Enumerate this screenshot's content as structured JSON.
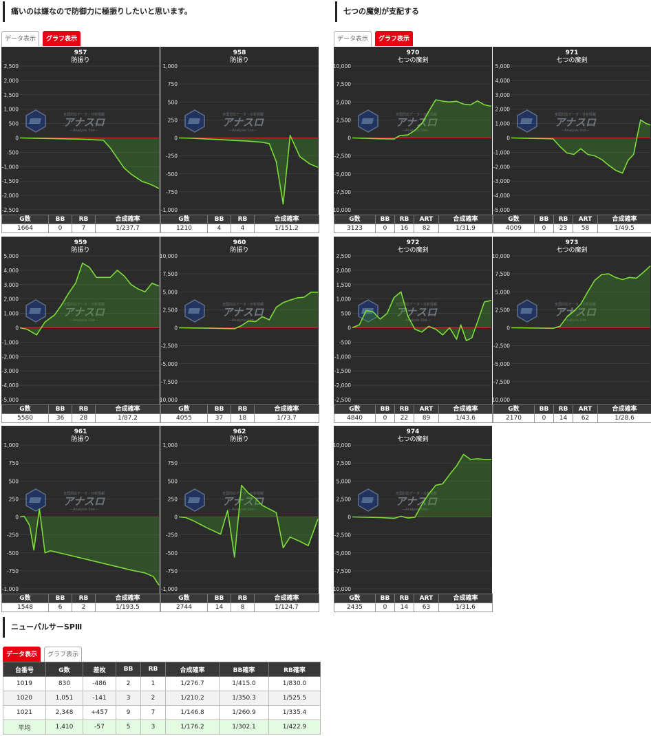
{
  "sections": {
    "left": {
      "title": "痛いのは嫌なので防御力に極振りしたいと思います。",
      "tab_data": "データ表示",
      "tab_graph": "グラフ表示"
    },
    "right": {
      "title": "七つの魔剣が支配する",
      "tab_data": "データ表示",
      "tab_graph": "グラフ表示"
    },
    "bottom": {
      "title": "ニューパルサーSPⅢ",
      "tab_data": "データ表示",
      "tab_graph": "グラフ表示"
    }
  },
  "watermark": {
    "text": "アナスロ",
    "sub": "—Analysis Slot—",
    "top": "全国対応データ・分析情報"
  },
  "headers": {
    "g": "G数",
    "bb": "BB",
    "rb": "RB",
    "art": "ART",
    "rate": "合成確率"
  },
  "colors": {
    "plot_bg": "#2b2b2b",
    "line": "#7ddc3a",
    "zero": "#c62828",
    "fill": "rgba(60,150,40,0.35)"
  },
  "machines": [
    {
      "no": "957",
      "name": "防振り",
      "g": "1664",
      "bb": "0",
      "rb": "7",
      "rate": "1/237.7",
      "chart_data": {
        "type": "area",
        "ylim": [
          -2500,
          2500
        ],
        "yticks": [
          2500,
          2000,
          1500,
          1000,
          500,
          0,
          -500,
          -1000,
          -1500,
          -2000,
          -2500
        ],
        "points": [
          [
            0,
            0
          ],
          [
            0.1,
            -10
          ],
          [
            0.2,
            -20
          ],
          [
            0.3,
            -30
          ],
          [
            0.4,
            -40
          ],
          [
            0.5,
            -55
          ],
          [
            0.55,
            -70
          ],
          [
            0.6,
            -80
          ],
          [
            0.65,
            -350
          ],
          [
            0.7,
            -700
          ],
          [
            0.75,
            -1050
          ],
          [
            0.8,
            -1260
          ],
          [
            0.85,
            -1420
          ],
          [
            0.88,
            -1520
          ],
          [
            0.92,
            -1580
          ],
          [
            0.96,
            -1660
          ],
          [
            1,
            -1760
          ]
        ]
      }
    },
    {
      "no": "958",
      "name": "防振り",
      "g": "1210",
      "bb": "4",
      "rb": "4",
      "rate": "1/151.2",
      "chart_data": {
        "type": "area",
        "ylim": [
          -1000,
          1000
        ],
        "yticks": [
          1000,
          750,
          500,
          250,
          0,
          -250,
          -500,
          -750,
          -1000
        ],
        "points": [
          [
            0,
            0
          ],
          [
            0.1,
            -5
          ],
          [
            0.2,
            -15
          ],
          [
            0.3,
            -25
          ],
          [
            0.4,
            -35
          ],
          [
            0.5,
            -45
          ],
          [
            0.6,
            -60
          ],
          [
            0.65,
            -80
          ],
          [
            0.7,
            -330
          ],
          [
            0.75,
            -920
          ],
          [
            0.8,
            35
          ],
          [
            0.87,
            -260
          ],
          [
            0.94,
            -360
          ],
          [
            1,
            -410
          ]
        ]
      }
    },
    {
      "no": "970",
      "name": "七つの魔剣",
      "g": "3123",
      "bb": "0",
      "rb": "16",
      "art": "82",
      "rate": "1/31.9",
      "chart_data": {
        "type": "area",
        "ylim": [
          -10000,
          10000
        ],
        "yticks": [
          10000,
          7500,
          5000,
          2500,
          0,
          -2500,
          -5000,
          -7500,
          -10000
        ],
        "points": [
          [
            0,
            0
          ],
          [
            0.1,
            -60
          ],
          [
            0.2,
            -120
          ],
          [
            0.3,
            -150
          ],
          [
            0.34,
            320
          ],
          [
            0.4,
            420
          ],
          [
            0.45,
            1050
          ],
          [
            0.5,
            2000
          ],
          [
            0.55,
            3700
          ],
          [
            0.6,
            5300
          ],
          [
            0.65,
            5100
          ],
          [
            0.7,
            5000
          ],
          [
            0.75,
            5100
          ],
          [
            0.8,
            4700
          ],
          [
            0.85,
            4600
          ],
          [
            0.9,
            5150
          ],
          [
            0.95,
            4600
          ],
          [
            1,
            4400
          ]
        ]
      }
    },
    {
      "no": "971",
      "name": "七つの魔剣",
      "g": "4009",
      "bb": "0",
      "rb": "23",
      "art": "58",
      "rate": "1/49.5",
      "chart_data": {
        "type": "area",
        "ylim": [
          -5000,
          5000
        ],
        "yticks": [
          5000,
          4000,
          3000,
          2000,
          1000,
          0,
          -1000,
          -2000,
          -3000,
          -4000,
          -5000
        ],
        "points": [
          [
            0,
            0
          ],
          [
            0.1,
            -20
          ],
          [
            0.3,
            -60
          ],
          [
            0.35,
            -600
          ],
          [
            0.4,
            -1050
          ],
          [
            0.45,
            -1150
          ],
          [
            0.5,
            -750
          ],
          [
            0.55,
            -1150
          ],
          [
            0.6,
            -1250
          ],
          [
            0.65,
            -1500
          ],
          [
            0.7,
            -1900
          ],
          [
            0.75,
            -2250
          ],
          [
            0.8,
            -2450
          ],
          [
            0.84,
            -1550
          ],
          [
            0.88,
            -1150
          ],
          [
            0.9,
            -150
          ],
          [
            0.93,
            1250
          ],
          [
            0.97,
            1000
          ],
          [
            1,
            900
          ]
        ]
      }
    },
    {
      "no": "959",
      "name": "防振り",
      "g": "5580",
      "bb": "36",
      "rb": "28",
      "rate": "1/87.2",
      "chart_data": {
        "type": "area",
        "ylim": [
          -5000,
          5000
        ],
        "yticks": [
          5000,
          4000,
          3000,
          2000,
          1000,
          0,
          -1000,
          -2000,
          -3000,
          -4000,
          -5000
        ],
        "points": [
          [
            0,
            0
          ],
          [
            0.05,
            -100
          ],
          [
            0.12,
            -500
          ],
          [
            0.18,
            400
          ],
          [
            0.25,
            900
          ],
          [
            0.3,
            1600
          ],
          [
            0.35,
            2400
          ],
          [
            0.4,
            3100
          ],
          [
            0.45,
            4500
          ],
          [
            0.5,
            4200
          ],
          [
            0.55,
            3500
          ],
          [
            0.6,
            3500
          ],
          [
            0.65,
            3500
          ],
          [
            0.7,
            4000
          ],
          [
            0.75,
            3600
          ],
          [
            0.8,
            3000
          ],
          [
            0.85,
            2700
          ],
          [
            0.9,
            2500
          ],
          [
            0.95,
            3100
          ],
          [
            1,
            2900
          ]
        ]
      }
    },
    {
      "no": "960",
      "name": "防振り",
      "g": "4055",
      "bb": "37",
      "rb": "18",
      "rate": "1/73.7",
      "chart_data": {
        "type": "area",
        "ylim": [
          -10000,
          10000
        ],
        "yticks": [
          10000,
          7500,
          5000,
          2500,
          0,
          -2500,
          -5000,
          -7500,
          -10000
        ],
        "points": [
          [
            0,
            0
          ],
          [
            0.1,
            -30
          ],
          [
            0.2,
            -60
          ],
          [
            0.3,
            -100
          ],
          [
            0.4,
            -130
          ],
          [
            0.45,
            300
          ],
          [
            0.5,
            950
          ],
          [
            0.55,
            850
          ],
          [
            0.6,
            1550
          ],
          [
            0.65,
            1100
          ],
          [
            0.7,
            2850
          ],
          [
            0.75,
            3500
          ],
          [
            0.8,
            3850
          ],
          [
            0.85,
            4150
          ],
          [
            0.9,
            4250
          ],
          [
            0.95,
            4950
          ],
          [
            1,
            4950
          ]
        ]
      }
    },
    {
      "no": "972",
      "name": "七つの魔剣",
      "g": "4840",
      "bb": "0",
      "rb": "22",
      "art": "89",
      "rate": "1/43.6",
      "chart_data": {
        "type": "area",
        "ylim": [
          -2500,
          2500
        ],
        "yticks": [
          2500,
          2000,
          1500,
          1000,
          500,
          0,
          -500,
          -1000,
          -1500,
          -2000,
          -2500
        ],
        "points": [
          [
            0,
            0
          ],
          [
            0.05,
            100
          ],
          [
            0.1,
            600
          ],
          [
            0.15,
            550
          ],
          [
            0.2,
            300
          ],
          [
            0.25,
            500
          ],
          [
            0.3,
            1050
          ],
          [
            0.35,
            1250
          ],
          [
            0.4,
            400
          ],
          [
            0.45,
            -50
          ],
          [
            0.5,
            -150
          ],
          [
            0.55,
            50
          ],
          [
            0.6,
            -50
          ],
          [
            0.65,
            -250
          ],
          [
            0.7,
            0
          ],
          [
            0.75,
            -400
          ],
          [
            0.78,
            100
          ],
          [
            0.82,
            -450
          ],
          [
            0.86,
            -350
          ],
          [
            0.9,
            200
          ],
          [
            0.95,
            900
          ],
          [
            1,
            950
          ]
        ]
      }
    },
    {
      "no": "973",
      "name": "七つの魔剣",
      "g": "2170",
      "bb": "0",
      "rb": "14",
      "art": "62",
      "rate": "1/28.6",
      "chart_data": {
        "type": "area",
        "ylim": [
          -10000,
          10000
        ],
        "yticks": [
          10000,
          7500,
          5000,
          2500,
          0,
          -2500,
          -5000,
          -7500,
          -10000
        ],
        "points": [
          [
            0,
            0
          ],
          [
            0.1,
            -20
          ],
          [
            0.2,
            -50
          ],
          [
            0.3,
            -80
          ],
          [
            0.35,
            200
          ],
          [
            0.4,
            1500
          ],
          [
            0.45,
            2300
          ],
          [
            0.5,
            3300
          ],
          [
            0.55,
            5000
          ],
          [
            0.6,
            6600
          ],
          [
            0.65,
            7400
          ],
          [
            0.7,
            7500
          ],
          [
            0.75,
            7000
          ],
          [
            0.8,
            6700
          ],
          [
            0.85,
            7000
          ],
          [
            0.9,
            6900
          ],
          [
            0.95,
            7700
          ],
          [
            1,
            8600
          ]
        ]
      }
    },
    {
      "no": "961",
      "name": "防振り",
      "g": "1548",
      "bb": "6",
      "rb": "2",
      "rate": "1/193.5",
      "chart_data": {
        "type": "area",
        "ylim": [
          -1000,
          1000
        ],
        "yticks": [
          1000,
          750,
          500,
          250,
          0,
          -250,
          -500,
          -750,
          -1000
        ],
        "points": [
          [
            0,
            0
          ],
          [
            0.03,
            10
          ],
          [
            0.07,
            -120
          ],
          [
            0.1,
            -460
          ],
          [
            0.14,
            110
          ],
          [
            0.18,
            -500
          ],
          [
            0.22,
            -470
          ],
          [
            0.5,
            -600
          ],
          [
            0.8,
            -740
          ],
          [
            0.9,
            -780
          ],
          [
            0.96,
            -830
          ],
          [
            1,
            -950
          ]
        ]
      }
    },
    {
      "no": "962",
      "name": "防振り",
      "g": "2744",
      "bb": "14",
      "rb": "8",
      "rate": "1/124.7",
      "chart_data": {
        "type": "area",
        "ylim": [
          -1000,
          1000
        ],
        "yticks": [
          1000,
          750,
          500,
          250,
          0,
          -250,
          -500,
          -750,
          -1000
        ],
        "points": [
          [
            0,
            0
          ],
          [
            0.05,
            -10
          ],
          [
            0.1,
            -50
          ],
          [
            0.2,
            -150
          ],
          [
            0.3,
            -240
          ],
          [
            0.35,
            90
          ],
          [
            0.4,
            -560
          ],
          [
            0.45,
            440
          ],
          [
            0.5,
            330
          ],
          [
            0.55,
            260
          ],
          [
            0.6,
            160
          ],
          [
            0.7,
            60
          ],
          [
            0.75,
            -430
          ],
          [
            0.8,
            -280
          ],
          [
            0.87,
            -340
          ],
          [
            0.93,
            -400
          ],
          [
            1,
            -30
          ]
        ]
      }
    },
    {
      "no": "974",
      "name": "七つの魔剣",
      "g": "2435",
      "bb": "0",
      "rb": "14",
      "art": "63",
      "rate": "1/31.6",
      "chart_data": {
        "type": "area",
        "ylim": [
          -10000,
          10000
        ],
        "yticks": [
          10000,
          7500,
          5000,
          2500,
          0,
          -2500,
          -5000,
          -7500,
          -10000
        ],
        "points": [
          [
            0,
            0
          ],
          [
            0.1,
            -50
          ],
          [
            0.2,
            -100
          ],
          [
            0.3,
            -200
          ],
          [
            0.35,
            100
          ],
          [
            0.4,
            -150
          ],
          [
            0.45,
            -50
          ],
          [
            0.5,
            1700
          ],
          [
            0.55,
            3200
          ],
          [
            0.6,
            4400
          ],
          [
            0.65,
            4600
          ],
          [
            0.7,
            5900
          ],
          [
            0.75,
            7100
          ],
          [
            0.8,
            8700
          ],
          [
            0.85,
            8000
          ],
          [
            0.9,
            8100
          ],
          [
            0.95,
            8000
          ],
          [
            1,
            8000
          ]
        ]
      }
    }
  ],
  "summary": {
    "headers": [
      "台番号",
      "G数",
      "差枚",
      "BB",
      "RB",
      "合成確率",
      "BB確率",
      "RB確率"
    ],
    "rows": [
      [
        "1019",
        "830",
        "-486",
        "2",
        "1",
        "1/276.7",
        "1/415.0",
        "1/830.0"
      ],
      [
        "1020",
        "1,051",
        "-141",
        "3",
        "2",
        "1/210.2",
        "1/350.3",
        "1/525.5"
      ],
      [
        "1021",
        "2,348",
        "+457",
        "9",
        "7",
        "1/146.8",
        "1/260.9",
        "1/335.4"
      ]
    ],
    "avg": [
      "平均",
      "1,410",
      "-57",
      "5",
      "3",
      "1/176.2",
      "1/302.1",
      "1/422.9"
    ]
  }
}
